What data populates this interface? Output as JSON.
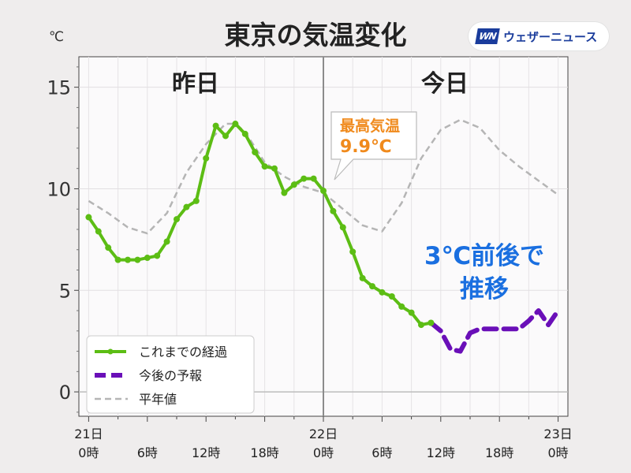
{
  "title": "東京の気温変化",
  "unit": "℃",
  "logo": {
    "mark": "WN",
    "text": "ウェザーニュース"
  },
  "colors": {
    "observed": "#5cbd14",
    "forecast": "#6a0fb8",
    "normal": "#b5b5b5",
    "peak_label": "#f08a1c",
    "comment": "#1a6fe0",
    "divider": "#8c8c8c"
  },
  "section_labels": {
    "yesterday": "昨日",
    "today": "今日"
  },
  "annotation": {
    "title": "最高気温",
    "value": "9.9℃"
  },
  "comment": {
    "line1": "3℃前後で",
    "line2": "推移"
  },
  "legend": {
    "placement": "bottom-left",
    "observed": "これまでの経過",
    "forecast": "今後の予報",
    "normal": "平年値"
  },
  "chart_data": {
    "type": "line",
    "title": "東京の気温変化",
    "ylabel": "℃",
    "x_range_hours": [
      -1,
      49
    ],
    "ylim": [
      -1.2,
      16.5
    ],
    "y_ticks": [
      0,
      5,
      10,
      15
    ],
    "grid": true,
    "x_ticks": [
      {
        "h": 0,
        "line1": "21日",
        "line2": "0時"
      },
      {
        "h": 6,
        "line1": "",
        "line2": "6時"
      },
      {
        "h": 12,
        "line1": "",
        "line2": "12時"
      },
      {
        "h": 18,
        "line1": "",
        "line2": "18時"
      },
      {
        "h": 24,
        "line1": "22日",
        "line2": "0時"
      },
      {
        "h": 30,
        "line1": "",
        "line2": "6時"
      },
      {
        "h": 36,
        "line1": "",
        "line2": "12時"
      },
      {
        "h": 42,
        "line1": "",
        "line2": "18時"
      },
      {
        "h": 48,
        "line1": "23日",
        "line2": "0時"
      }
    ],
    "divider_hour": 24,
    "series": [
      {
        "name": "これまでの経過",
        "x": [
          0,
          1,
          2,
          3,
          4,
          5,
          6,
          7,
          8,
          9,
          10,
          11,
          12,
          13,
          14,
          15,
          16,
          17,
          18,
          19,
          20,
          21,
          22,
          23,
          24,
          25,
          26,
          27,
          28,
          29,
          30,
          31,
          32,
          33,
          34,
          35
        ],
        "values": [
          8.6,
          7.9,
          7.1,
          6.5,
          6.5,
          6.5,
          6.6,
          6.7,
          7.4,
          8.5,
          9.1,
          9.4,
          11.5,
          13.1,
          12.6,
          13.2,
          12.7,
          11.8,
          11.1,
          11.0,
          9.8,
          10.2,
          10.5,
          10.5,
          9.9,
          8.9,
          8.1,
          6.9,
          5.6,
          5.2,
          4.9,
          4.7,
          4.2,
          3.9,
          3.3,
          3.4
        ]
      },
      {
        "name": "今後の予報",
        "x": [
          35,
          36,
          37,
          38,
          39,
          40,
          41,
          42,
          43,
          44,
          45,
          46,
          47,
          48
        ],
        "values": [
          3.4,
          3.0,
          2.1,
          2.0,
          2.9,
          3.1,
          3.1,
          3.1,
          3.1,
          3.1,
          3.5,
          4.0,
          3.3,
          4.0
        ]
      },
      {
        "name": "平年値",
        "x": [
          0,
          2,
          4,
          6,
          8,
          10,
          12,
          14,
          15,
          16,
          18,
          20,
          22,
          24,
          26,
          28,
          30,
          32,
          34,
          36,
          38,
          39,
          40,
          42,
          44,
          46,
          48
        ],
        "values": [
          9.4,
          8.8,
          8.1,
          7.8,
          8.8,
          10.8,
          12.2,
          13.2,
          13.2,
          12.8,
          11.3,
          10.6,
          10.1,
          9.8,
          9.0,
          8.2,
          7.9,
          9.3,
          11.5,
          12.9,
          13.4,
          13.2,
          13.0,
          11.9,
          11.1,
          10.4,
          9.7
        ]
      }
    ]
  }
}
